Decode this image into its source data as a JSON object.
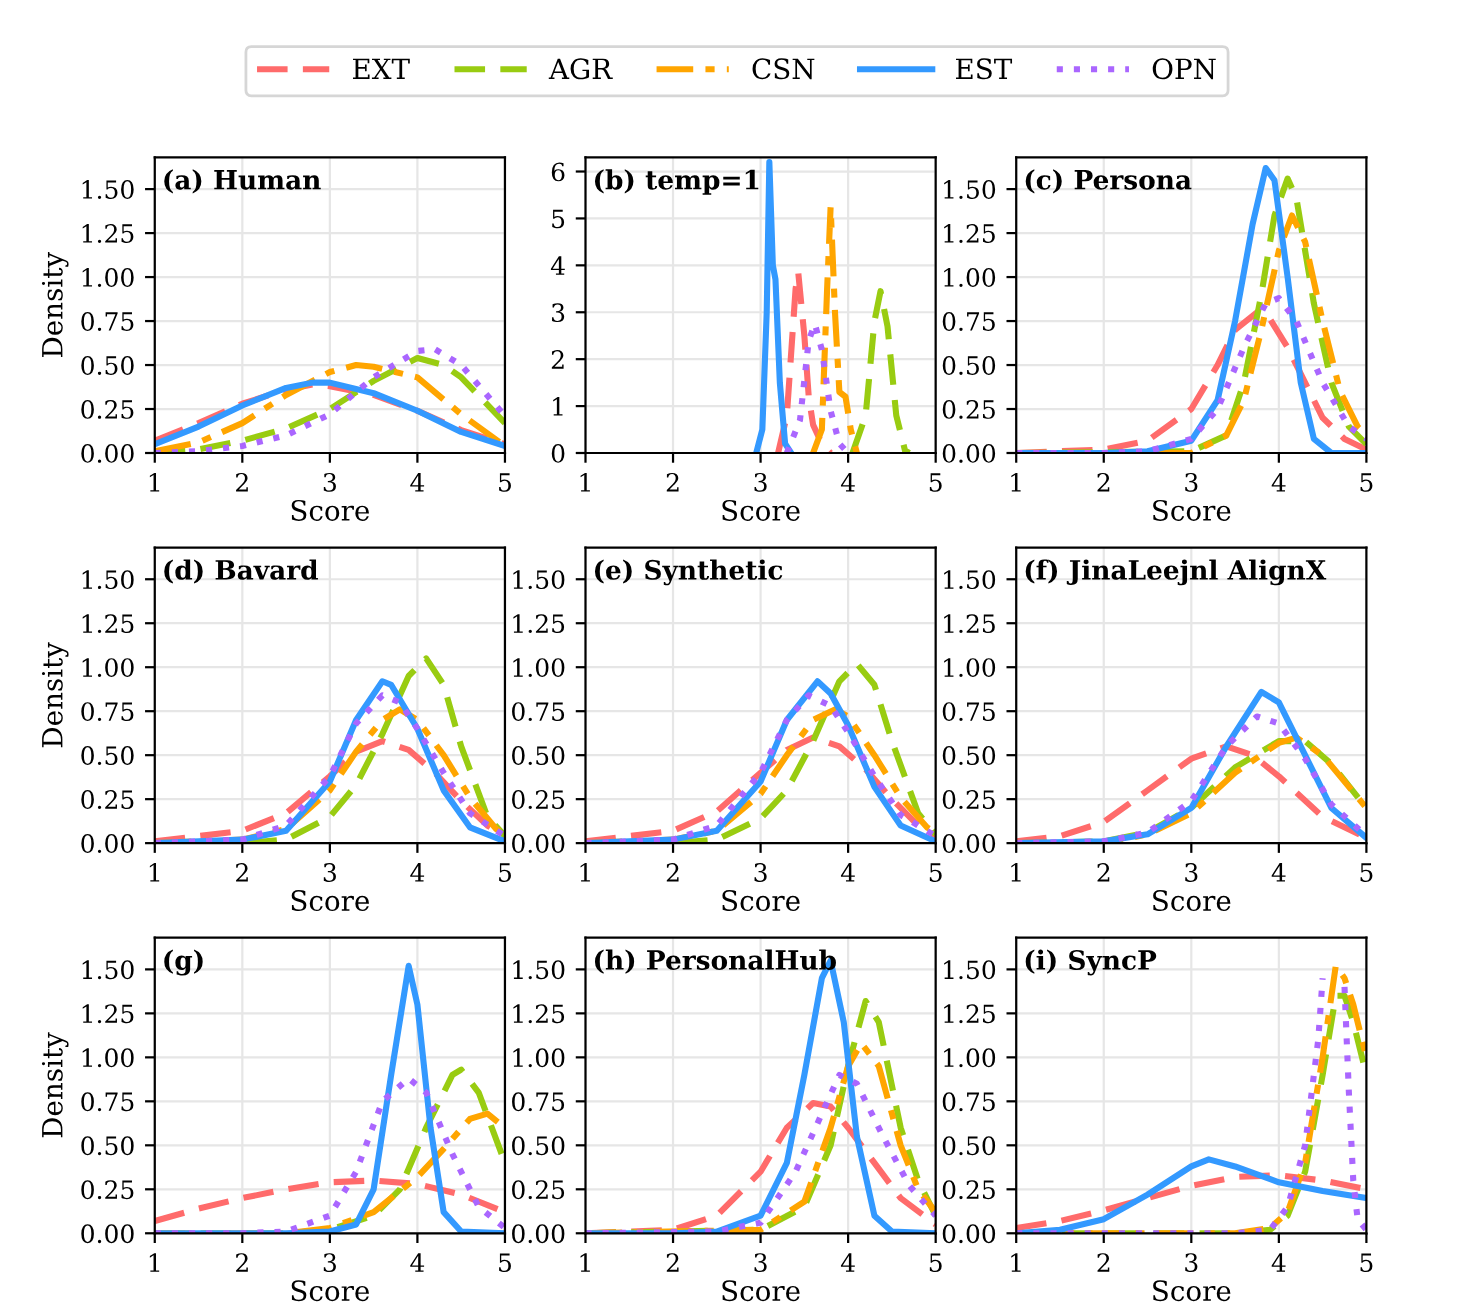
{
  "chart_data": [
    {
      "type": "line",
      "title": "(a) Human",
      "xlabel": "Score",
      "ylabel": "Density",
      "xlim": [
        1,
        5
      ],
      "ylim": [
        0,
        1.68
      ],
      "xticks": [
        1,
        2,
        3,
        4,
        5
      ],
      "yticks": [
        {
          "value": 0,
          "label": "0.00"
        },
        {
          "value": 0.25,
          "label": "0.25"
        },
        {
          "value": 0.5,
          "label": "0.50"
        },
        {
          "value": 0.75,
          "label": "0.75"
        },
        {
          "value": 1,
          "label": "1.00"
        },
        {
          "value": 1.25,
          "label": "1.25"
        },
        {
          "value": 1.5,
          "label": "1.50"
        }
      ],
      "grid": true,
      "legend": "top",
      "series": [
        {
          "name": "EXT",
          "color": "#ff6b6b",
          "line_style": "dashed",
          "x": [
            1,
            1.5,
            2,
            2.5,
            2.8,
            3,
            3.5,
            4,
            4.5,
            5
          ],
          "values": [
            0.07,
            0.17,
            0.28,
            0.36,
            0.39,
            0.38,
            0.33,
            0.24,
            0.13,
            0.05
          ]
        },
        {
          "name": "AGR",
          "color": "#99cc11",
          "line_style": "dashed",
          "x": [
            1,
            1.5,
            2,
            2.5,
            3,
            3.5,
            4,
            4.3,
            4.5,
            5
          ],
          "values": [
            0.0,
            0.02,
            0.07,
            0.14,
            0.25,
            0.41,
            0.54,
            0.5,
            0.43,
            0.17
          ]
        },
        {
          "name": "CSN",
          "color": "#ffa500",
          "line_style": "dashdot",
          "x": [
            1,
            1.5,
            2,
            2.5,
            3,
            3.3,
            3.5,
            4,
            4.5,
            5
          ],
          "values": [
            0.01,
            0.06,
            0.17,
            0.33,
            0.46,
            0.5,
            0.49,
            0.43,
            0.22,
            0.04
          ]
        },
        {
          "name": "EST",
          "color": "#3399ff",
          "line_style": "solid",
          "x": [
            1,
            1.5,
            2,
            2.5,
            2.8,
            3,
            3.5,
            4,
            4.5,
            5
          ],
          "values": [
            0.05,
            0.15,
            0.27,
            0.37,
            0.4,
            0.4,
            0.34,
            0.24,
            0.12,
            0.04
          ]
        },
        {
          "name": "OPN",
          "color": "#aa66ff",
          "line_style": "dotted",
          "x": [
            1,
            1.5,
            2,
            2.5,
            3,
            3.5,
            4,
            4.2,
            4.5,
            5
          ],
          "values": [
            0.0,
            0.01,
            0.04,
            0.1,
            0.22,
            0.43,
            0.58,
            0.59,
            0.5,
            0.21
          ]
        }
      ]
    },
    {
      "type": "line",
      "title": "(b) temp=1",
      "xlabel": "Score",
      "xlim": [
        1,
        5
      ],
      "ylim": [
        0,
        6.3
      ],
      "xticks": [
        1,
        2,
        3,
        4,
        5
      ],
      "yticks": [
        0,
        1,
        2,
        3,
        4,
        5,
        6
      ],
      "grid": true,
      "series": [
        {
          "color": "#ff6b6b",
          "line_style": "dashed",
          "x": [
            3.2,
            3.3,
            3.4,
            3.43,
            3.5,
            3.55,
            3.6,
            3.7,
            3.8
          ],
          "values": [
            0,
            0.8,
            3.5,
            3.85,
            2.5,
            1.2,
            0.6,
            0.2,
            0
          ]
        },
        {
          "color": "#99cc11",
          "line_style": "dashed",
          "x": [
            4.05,
            4.2,
            4.3,
            4.37,
            4.45,
            4.55,
            4.65,
            4.7
          ],
          "values": [
            0,
            0.8,
            2.8,
            3.45,
            2.7,
            0.8,
            0.05,
            0
          ]
        },
        {
          "color": "#ffa500",
          "line_style": "dashdot",
          "x": [
            3.6,
            3.7,
            3.76,
            3.8,
            3.85,
            3.9,
            3.97,
            4.03,
            4.1
          ],
          "values": [
            0,
            0.5,
            3.5,
            5.25,
            3.0,
            1.3,
            1.2,
            0.5,
            0
          ]
        },
        {
          "color": "#3399ff",
          "line_style": "solid",
          "x": [
            2.95,
            3.02,
            3.07,
            3.1,
            3.14,
            3.17,
            3.22,
            3.28,
            3.35
          ],
          "values": [
            0,
            0.5,
            3,
            6.2,
            4,
            3.7,
            1.5,
            0.2,
            0
          ]
        },
        {
          "color": "#aa66ff",
          "line_style": "dotted",
          "x": [
            3.3,
            3.45,
            3.55,
            3.62,
            3.7,
            3.8,
            3.9,
            4.0
          ],
          "values": [
            0,
            0.7,
            2.4,
            2.75,
            2.2,
            0.9,
            0.2,
            0
          ]
        }
      ]
    },
    {
      "type": "line",
      "title": "(c) Persona",
      "xlabel": "Score",
      "xlim": [
        1,
        5
      ],
      "ylim": [
        0,
        1.68
      ],
      "xticks": [
        1,
        2,
        3,
        4,
        5
      ],
      "yticks": [
        {
          "value": 0,
          "label": "0.00"
        },
        {
          "value": 0.25,
          "label": "0.25"
        },
        {
          "value": 0.5,
          "label": "0.50"
        },
        {
          "value": 0.75,
          "label": "0.75"
        },
        {
          "value": 1,
          "label": "1.00"
        },
        {
          "value": 1.25,
          "label": "1.25"
        },
        {
          "value": 1.5,
          "label": "1.50"
        }
      ],
      "grid": true,
      "series": [
        {
          "color": "#ff6b6b",
          "line_style": "dashed",
          "x": [
            1,
            2,
            2.5,
            3,
            3.3,
            3.5,
            3.75,
            3.9,
            4.1,
            4.3,
            4.5,
            4.75,
            5
          ],
          "values": [
            0,
            0.02,
            0.07,
            0.25,
            0.5,
            0.7,
            0.8,
            0.76,
            0.6,
            0.4,
            0.2,
            0.08,
            0.02
          ]
        },
        {
          "color": "#99cc11",
          "line_style": "dashed",
          "x": [
            1,
            3,
            3.4,
            3.6,
            3.8,
            3.95,
            4.1,
            4.2,
            4.4,
            4.6,
            4.8,
            5
          ],
          "values": [
            0,
            0.01,
            0.1,
            0.4,
            0.9,
            1.35,
            1.56,
            1.45,
            0.85,
            0.4,
            0.15,
            0.05
          ]
        },
        {
          "color": "#ffa500",
          "line_style": "dashdot",
          "x": [
            1,
            3,
            3.4,
            3.6,
            3.8,
            4.0,
            4.15,
            4.3,
            4.5,
            4.7,
            4.9,
            5
          ],
          "values": [
            0,
            0.0,
            0.1,
            0.3,
            0.7,
            1.15,
            1.35,
            1.2,
            0.75,
            0.35,
            0.15,
            0.1
          ]
        },
        {
          "color": "#3399ff",
          "line_style": "solid",
          "x": [
            1,
            2,
            2.5,
            3,
            3.3,
            3.5,
            3.7,
            3.85,
            3.95,
            4.1,
            4.25,
            4.4,
            4.6,
            5
          ],
          "values": [
            0,
            0,
            0.01,
            0.07,
            0.3,
            0.75,
            1.3,
            1.62,
            1.55,
            1.0,
            0.4,
            0.08,
            0,
            0
          ]
        },
        {
          "color": "#aa66ff",
          "line_style": "dotted",
          "x": [
            1,
            2,
            2.5,
            3,
            3.3,
            3.6,
            3.85,
            4.0,
            4.2,
            4.5,
            4.8,
            5
          ],
          "values": [
            0,
            0,
            0.01,
            0.08,
            0.25,
            0.6,
            0.85,
            0.88,
            0.75,
            0.4,
            0.15,
            0.08
          ]
        }
      ]
    },
    {
      "type": "line",
      "title": "(d) Bavard",
      "xlabel": "Score",
      "ylabel": "Density",
      "xlim": [
        1,
        5
      ],
      "ylim": [
        0,
        1.68
      ],
      "xticks": [
        1,
        2,
        3,
        4,
        5
      ],
      "yticks": [
        {
          "value": 0,
          "label": "0.00"
        },
        {
          "value": 0.25,
          "label": "0.25"
        },
        {
          "value": 0.5,
          "label": "0.50"
        },
        {
          "value": 0.75,
          "label": "0.75"
        },
        {
          "value": 1,
          "label": "1.00"
        },
        {
          "value": 1.25,
          "label": "1.25"
        },
        {
          "value": 1.5,
          "label": "1.50"
        }
      ],
      "grid": true,
      "series": [
        {
          "color": "#ff6b6b",
          "line_style": "dashed",
          "x": [
            1,
            2,
            2.5,
            3,
            3.3,
            3.6,
            3.9,
            4.2,
            4.5,
            4.8,
            5
          ],
          "values": [
            0.01,
            0.07,
            0.17,
            0.38,
            0.52,
            0.58,
            0.53,
            0.4,
            0.24,
            0.1,
            0.04
          ]
        },
        {
          "color": "#99cc11",
          "line_style": "dashed",
          "x": [
            1,
            2,
            2.5,
            3,
            3.3,
            3.6,
            3.9,
            4.1,
            4.3,
            4.5,
            4.8,
            5
          ],
          "values": [
            0,
            0,
            0.02,
            0.15,
            0.33,
            0.62,
            0.95,
            1.05,
            0.9,
            0.55,
            0.15,
            0.04
          ]
        },
        {
          "color": "#ffa500",
          "line_style": "dashdot",
          "x": [
            1,
            2,
            2.5,
            3,
            3.3,
            3.6,
            3.8,
            4.0,
            4.3,
            4.6,
            4.9,
            5
          ],
          "values": [
            0,
            0.02,
            0.08,
            0.3,
            0.52,
            0.7,
            0.76,
            0.7,
            0.5,
            0.26,
            0.08,
            0.05
          ]
        },
        {
          "color": "#3399ff",
          "line_style": "solid",
          "x": [
            1,
            2,
            2.5,
            3,
            3.3,
            3.6,
            3.7,
            4.0,
            4.3,
            4.6,
            5
          ],
          "values": [
            0,
            0.02,
            0.07,
            0.35,
            0.7,
            0.92,
            0.9,
            0.65,
            0.3,
            0.09,
            0.01
          ]
        },
        {
          "color": "#aa66ff",
          "line_style": "dotted",
          "x": [
            1,
            2,
            2.5,
            3,
            3.3,
            3.6,
            3.8,
            4.0,
            4.3,
            4.6,
            5
          ],
          "values": [
            0,
            0.02,
            0.1,
            0.38,
            0.68,
            0.84,
            0.8,
            0.65,
            0.4,
            0.17,
            0.04
          ]
        }
      ]
    },
    {
      "type": "line",
      "title": "(e) Synthetic",
      "xlabel": "Score",
      "xlim": [
        1,
        5
      ],
      "ylim": [
        0,
        1.68
      ],
      "xticks": [
        1,
        2,
        3,
        4,
        5
      ],
      "yticks": [
        {
          "value": 0,
          "label": "0.00"
        },
        {
          "value": 0.25,
          "label": "0.25"
        },
        {
          "value": 0.5,
          "label": "0.50"
        },
        {
          "value": 0.75,
          "label": "0.75"
        },
        {
          "value": 1,
          "label": "1.00"
        },
        {
          "value": 1.25,
          "label": "1.25"
        },
        {
          "value": 1.5,
          "label": "1.50"
        }
      ],
      "grid": true,
      "series": [
        {
          "color": "#ff6b6b",
          "line_style": "dashed",
          "x": [
            1,
            2,
            2.5,
            3,
            3.3,
            3.6,
            3.9,
            4.2,
            4.5,
            4.8,
            5
          ],
          "values": [
            0.01,
            0.07,
            0.18,
            0.4,
            0.53,
            0.6,
            0.55,
            0.42,
            0.25,
            0.1,
            0.04
          ]
        },
        {
          "color": "#99cc11",
          "line_style": "dashed",
          "x": [
            1,
            2,
            2.5,
            3,
            3.3,
            3.6,
            3.9,
            4.1,
            4.3,
            4.5,
            4.8,
            5
          ],
          "values": [
            0,
            0,
            0.02,
            0.14,
            0.3,
            0.58,
            0.92,
            1.02,
            0.9,
            0.58,
            0.17,
            0.05
          ]
        },
        {
          "color": "#ffa500",
          "line_style": "dashdot",
          "x": [
            1,
            2,
            2.5,
            3,
            3.3,
            3.6,
            3.85,
            4.0,
            4.3,
            4.6,
            4.9,
            5
          ],
          "values": [
            0,
            0.02,
            0.07,
            0.28,
            0.5,
            0.7,
            0.76,
            0.72,
            0.5,
            0.26,
            0.09,
            0.06
          ]
        },
        {
          "color": "#3399ff",
          "line_style": "solid",
          "x": [
            1,
            2,
            2.5,
            3,
            3.3,
            3.65,
            3.8,
            4.0,
            4.3,
            4.6,
            5
          ],
          "values": [
            0,
            0.02,
            0.07,
            0.35,
            0.7,
            0.92,
            0.85,
            0.67,
            0.32,
            0.1,
            0.01
          ]
        },
        {
          "color": "#aa66ff",
          "line_style": "dotted",
          "x": [
            1,
            2,
            2.5,
            3,
            3.3,
            3.55,
            3.8,
            4.0,
            4.3,
            4.6,
            5
          ],
          "values": [
            0,
            0.02,
            0.1,
            0.4,
            0.7,
            0.84,
            0.78,
            0.63,
            0.38,
            0.16,
            0.04
          ]
        }
      ]
    },
    {
      "type": "line",
      "title": "(f) JinaLeejnl AlignX",
      "xlabel": "Score",
      "xlim": [
        1,
        5
      ],
      "ylim": [
        0,
        1.68
      ],
      "xticks": [
        1,
        2,
        3,
        4,
        5
      ],
      "yticks": [
        {
          "value": 0,
          "label": "0.00"
        },
        {
          "value": 0.25,
          "label": "0.25"
        },
        {
          "value": 0.5,
          "label": "0.50"
        },
        {
          "value": 0.75,
          "label": "0.75"
        },
        {
          "value": 1,
          "label": "1.00"
        },
        {
          "value": 1.25,
          "label": "1.25"
        },
        {
          "value": 1.5,
          "label": "1.50"
        }
      ],
      "grid": true,
      "series": [
        {
          "color": "#ff6b6b",
          "line_style": "dashed",
          "x": [
            1,
            1.5,
            2,
            2.5,
            3,
            3.4,
            3.7,
            4,
            4.5,
            5
          ],
          "values": [
            0.01,
            0.04,
            0.12,
            0.3,
            0.48,
            0.55,
            0.5,
            0.38,
            0.15,
            0.03
          ]
        },
        {
          "color": "#99cc11",
          "line_style": "dashed",
          "x": [
            1,
            2,
            2.5,
            3,
            3.5,
            4,
            4.3,
            4.6,
            5
          ],
          "values": [
            0,
            0.01,
            0.06,
            0.2,
            0.43,
            0.58,
            0.58,
            0.45,
            0.2
          ]
        },
        {
          "color": "#ffa500",
          "line_style": "dashdot",
          "x": [
            1,
            2,
            2.5,
            3,
            3.5,
            4,
            4.2,
            4.5,
            5
          ],
          "values": [
            0,
            0,
            0.05,
            0.17,
            0.4,
            0.57,
            0.6,
            0.5,
            0.2
          ]
        },
        {
          "color": "#3399ff",
          "line_style": "solid",
          "x": [
            1,
            2,
            2.5,
            3,
            3.4,
            3.8,
            4.0,
            4.3,
            4.6,
            5
          ],
          "values": [
            0,
            0.01,
            0.05,
            0.2,
            0.55,
            0.86,
            0.8,
            0.5,
            0.2,
            0.03
          ]
        },
        {
          "color": "#aa66ff",
          "line_style": "dotted",
          "x": [
            1,
            2,
            2.5,
            3,
            3.4,
            3.75,
            4.0,
            4.3,
            4.6,
            5
          ],
          "values": [
            0,
            0.01,
            0.06,
            0.24,
            0.55,
            0.72,
            0.68,
            0.48,
            0.22,
            0.04
          ]
        }
      ]
    },
    {
      "type": "line",
      "title": "(g)",
      "xlabel": "Score",
      "ylabel": "Density",
      "xlim": [
        1,
        5
      ],
      "ylim": [
        0,
        1.68
      ],
      "xticks": [
        1,
        2,
        3,
        4,
        5
      ],
      "yticks": [
        {
          "value": 0,
          "label": "0.00"
        },
        {
          "value": 0.25,
          "label": "0.25"
        },
        {
          "value": 0.5,
          "label": "0.50"
        },
        {
          "value": 0.75,
          "label": "0.75"
        },
        {
          "value": 1,
          "label": "1.00"
        },
        {
          "value": 1.25,
          "label": "1.25"
        },
        {
          "value": 1.5,
          "label": "1.50"
        }
      ],
      "grid": true,
      "series": [
        {
          "color": "#ff6b6b",
          "line_style": "dashed",
          "x": [
            1,
            1.5,
            2,
            2.5,
            3,
            3.5,
            4,
            4.5,
            5
          ],
          "values": [
            0.07,
            0.14,
            0.2,
            0.25,
            0.29,
            0.3,
            0.28,
            0.22,
            0.12
          ]
        },
        {
          "color": "#99cc11",
          "line_style": "dashed",
          "x": [
            1,
            2.5,
            3,
            3.5,
            3.8,
            4.1,
            4.4,
            4.5,
            4.7,
            5
          ],
          "values": [
            0,
            0,
            0.02,
            0.1,
            0.25,
            0.6,
            0.9,
            0.93,
            0.8,
            0.4
          ]
        },
        {
          "color": "#ffa500",
          "line_style": "dashdot",
          "x": [
            1,
            2.5,
            3,
            3.5,
            4,
            4.3,
            4.6,
            4.8,
            5
          ],
          "values": [
            0,
            0,
            0.03,
            0.12,
            0.32,
            0.48,
            0.65,
            0.68,
            0.6
          ]
        },
        {
          "color": "#3399ff",
          "line_style": "solid",
          "x": [
            1,
            2.5,
            3,
            3.3,
            3.5,
            3.7,
            3.9,
            4.0,
            4.15,
            4.3,
            4.5,
            5
          ],
          "values": [
            0,
            0,
            0.01,
            0.05,
            0.25,
            0.9,
            1.52,
            1.3,
            0.6,
            0.12,
            0.01,
            0
          ]
        },
        {
          "color": "#aa66ff",
          "line_style": "dotted",
          "x": [
            1,
            2,
            2.5,
            3,
            3.3,
            3.6,
            3.9,
            4.1,
            4.4,
            4.7,
            5
          ],
          "values": [
            0,
            0,
            0.01,
            0.1,
            0.35,
            0.75,
            0.88,
            0.8,
            0.45,
            0.15,
            0.03
          ]
        }
      ]
    },
    {
      "type": "line",
      "title": "(h) PersonalHub",
      "xlabel": "Score",
      "xlim": [
        1,
        5
      ],
      "ylim": [
        0,
        1.68
      ],
      "xticks": [
        1,
        2,
        3,
        4,
        5
      ],
      "yticks": [
        {
          "value": 0,
          "label": "0.00"
        },
        {
          "value": 0.25,
          "label": "0.25"
        },
        {
          "value": 0.5,
          "label": "0.50"
        },
        {
          "value": 0.75,
          "label": "0.75"
        },
        {
          "value": 1,
          "label": "1.00"
        },
        {
          "value": 1.25,
          "label": "1.25"
        },
        {
          "value": 1.5,
          "label": "1.50"
        }
      ],
      "grid": true,
      "series": [
        {
          "color": "#ff6b6b",
          "line_style": "dashed",
          "x": [
            1,
            2,
            2.5,
            3,
            3.3,
            3.6,
            3.8,
            4.0,
            4.3,
            4.6,
            5
          ],
          "values": [
            0,
            0.02,
            0.1,
            0.35,
            0.6,
            0.74,
            0.72,
            0.6,
            0.4,
            0.2,
            0.05
          ]
        },
        {
          "color": "#99cc11",
          "line_style": "dashed",
          "x": [
            1,
            3,
            3.5,
            3.8,
            4.0,
            4.2,
            4.35,
            4.6,
            4.8,
            5
          ],
          "values": [
            0,
            0.02,
            0.15,
            0.5,
            0.95,
            1.32,
            1.2,
            0.6,
            0.3,
            0.1
          ]
        },
        {
          "color": "#ffa500",
          "line_style": "dashdot",
          "x": [
            1,
            3,
            3.5,
            3.8,
            4.0,
            4.15,
            4.35,
            4.6,
            4.8,
            5
          ],
          "values": [
            0,
            0.02,
            0.18,
            0.6,
            0.95,
            1.08,
            0.95,
            0.5,
            0.25,
            0.12
          ]
        },
        {
          "color": "#3399ff",
          "line_style": "solid",
          "x": [
            1,
            2,
            2.5,
            3,
            3.3,
            3.5,
            3.7,
            3.8,
            3.95,
            4.1,
            4.3,
            4.5,
            5
          ],
          "values": [
            0,
            0,
            0.01,
            0.1,
            0.4,
            0.9,
            1.45,
            1.55,
            1.2,
            0.55,
            0.1,
            0.01,
            0
          ]
        },
        {
          "color": "#aa66ff",
          "line_style": "dotted",
          "x": [
            1,
            2.5,
            3,
            3.4,
            3.7,
            3.9,
            4.1,
            4.4,
            4.7,
            5
          ],
          "values": [
            0,
            0.01,
            0.06,
            0.35,
            0.68,
            0.9,
            0.85,
            0.55,
            0.27,
            0.1
          ]
        }
      ]
    },
    {
      "type": "line",
      "title": "(i) SyncP",
      "xlabel": "Score",
      "xlim": [
        1,
        5
      ],
      "ylim": [
        0,
        1.68
      ],
      "xticks": [
        1,
        2,
        3,
        4,
        5
      ],
      "yticks": [
        {
          "value": 0,
          "label": "0.00"
        },
        {
          "value": 0.25,
          "label": "0.25"
        },
        {
          "value": 0.5,
          "label": "0.50"
        },
        {
          "value": 0.75,
          "label": "0.75"
        },
        {
          "value": 1,
          "label": "1.00"
        },
        {
          "value": 1.25,
          "label": "1.25"
        },
        {
          "value": 1.5,
          "label": "1.50"
        }
      ],
      "grid": true,
      "series": [
        {
          "color": "#ff6b6b",
          "line_style": "dashed",
          "x": [
            1,
            1.5,
            2,
            2.5,
            3,
            3.5,
            4,
            4.5,
            5
          ],
          "values": [
            0.03,
            0.07,
            0.13,
            0.2,
            0.27,
            0.32,
            0.33,
            0.3,
            0.25
          ]
        },
        {
          "color": "#99cc11",
          "line_style": "dashed",
          "x": [
            1,
            3.5,
            3.9,
            4.1,
            4.3,
            4.5,
            4.65,
            4.75,
            4.85,
            5
          ],
          "values": [
            0,
            0,
            0.02,
            0.1,
            0.35,
            0.9,
            1.35,
            1.35,
            1.2,
            0.9
          ]
        },
        {
          "color": "#ffa500",
          "line_style": "dashdot",
          "x": [
            1,
            3.5,
            3.9,
            4.1,
            4.3,
            4.5,
            4.65,
            4.75,
            4.85,
            5
          ],
          "values": [
            0,
            0,
            0.03,
            0.12,
            0.4,
            1.0,
            1.52,
            1.45,
            1.3,
            1.0
          ]
        },
        {
          "color": "#3399ff",
          "line_style": "solid",
          "x": [
            1,
            1.5,
            2,
            2.5,
            3,
            3.2,
            3.5,
            4,
            4.5,
            5
          ],
          "values": [
            0,
            0.02,
            0.08,
            0.22,
            0.38,
            0.42,
            0.38,
            0.29,
            0.24,
            0.2
          ]
        },
        {
          "color": "#aa66ff",
          "line_style": "dotted",
          "x": [
            1,
            3.5,
            3.9,
            4.1,
            4.3,
            4.45,
            4.5,
            4.55,
            4.7,
            4.75,
            4.8,
            4.85,
            4.9,
            5
          ],
          "values": [
            0,
            0,
            0.02,
            0.15,
            0.5,
            1.1,
            1.45,
            null,
            null,
            1.4,
            0.8,
            0.3,
            0.08,
            0.02
          ]
        }
      ]
    }
  ]
}
